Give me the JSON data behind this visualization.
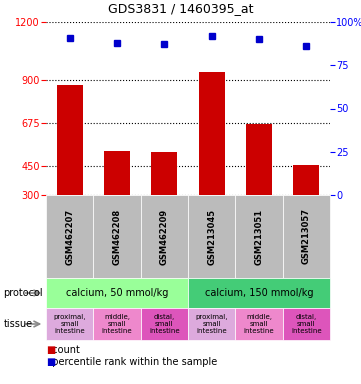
{
  "title": "GDS3831 / 1460395_at",
  "samples": [
    "GSM462207",
    "GSM462208",
    "GSM462209",
    "GSM213045",
    "GSM213051",
    "GSM213057"
  ],
  "bar_values": [
    870,
    530,
    525,
    940,
    670,
    455
  ],
  "percentile_values": [
    91,
    88,
    87,
    92,
    90,
    86
  ],
  "ylim_left": [
    300,
    1200
  ],
  "ylim_right": [
    0,
    100
  ],
  "left_ticks": [
    300,
    450,
    675,
    900,
    1200
  ],
  "right_ticks": [
    0,
    25,
    50,
    75,
    100
  ],
  "bar_color": "#cc0000",
  "dot_color": "#0000cc",
  "protocol_labels": [
    "calcium, 50 mmol/kg",
    "calcium, 150 mmol/kg"
  ],
  "protocol_bg": [
    "#99ff99",
    "#44cc77"
  ],
  "tissue_labels": [
    "proximal,\nsmall\nintestine",
    "middle,\nsmall\nintestine",
    "distal,\nsmall\nintestine",
    "proximal,\nsmall\nintestine",
    "middle,\nsmall\nintestine",
    "distal,\nsmall\nintestine"
  ],
  "tissue_bg": [
    "#ddaadd",
    "#ee88cc",
    "#dd55bb",
    "#ddaadd",
    "#ee88cc",
    "#dd55bb"
  ],
  "sample_bg": "#bbbbbb",
  "grid_color": "#555555",
  "title_fontsize": 9,
  "sample_fontsize": 6,
  "protocol_fontsize": 7,
  "tissue_fontsize": 5,
  "label_fontsize": 7,
  "legend_fontsize": 7
}
